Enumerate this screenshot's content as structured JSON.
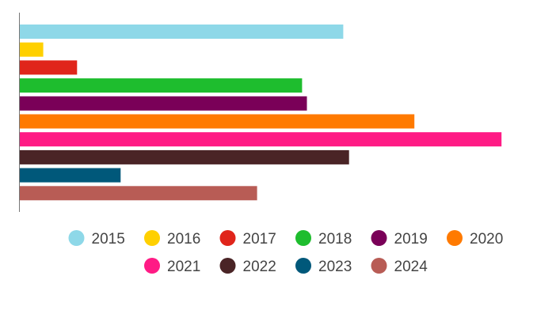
{
  "chart_data": {
    "type": "bar",
    "orientation": "horizontal",
    "grid": false,
    "legend_placement": "bottom",
    "xlim": [
      0,
      100
    ],
    "series": [
      {
        "name": "2015",
        "value": 67,
        "color": "#8ed8e8"
      },
      {
        "name": "2016",
        "value": 5,
        "color": "#ffd000"
      },
      {
        "name": "2017",
        "value": 12,
        "color": "#e0251b"
      },
      {
        "name": "2018",
        "value": 58.5,
        "color": "#1ebd2e"
      },
      {
        "name": "2019",
        "value": 59.5,
        "color": "#7a0058"
      },
      {
        "name": "2020",
        "value": 81.7,
        "color": "#ff7a00"
      },
      {
        "name": "2021",
        "value": 99.7,
        "color": "#ff1b85"
      },
      {
        "name": "2022",
        "value": 68.2,
        "color": "#4a2426"
      },
      {
        "name": "2023",
        "value": 21,
        "color": "#00587a"
      },
      {
        "name": "2024",
        "value": 49.2,
        "color": "#b85c55"
      }
    ]
  }
}
